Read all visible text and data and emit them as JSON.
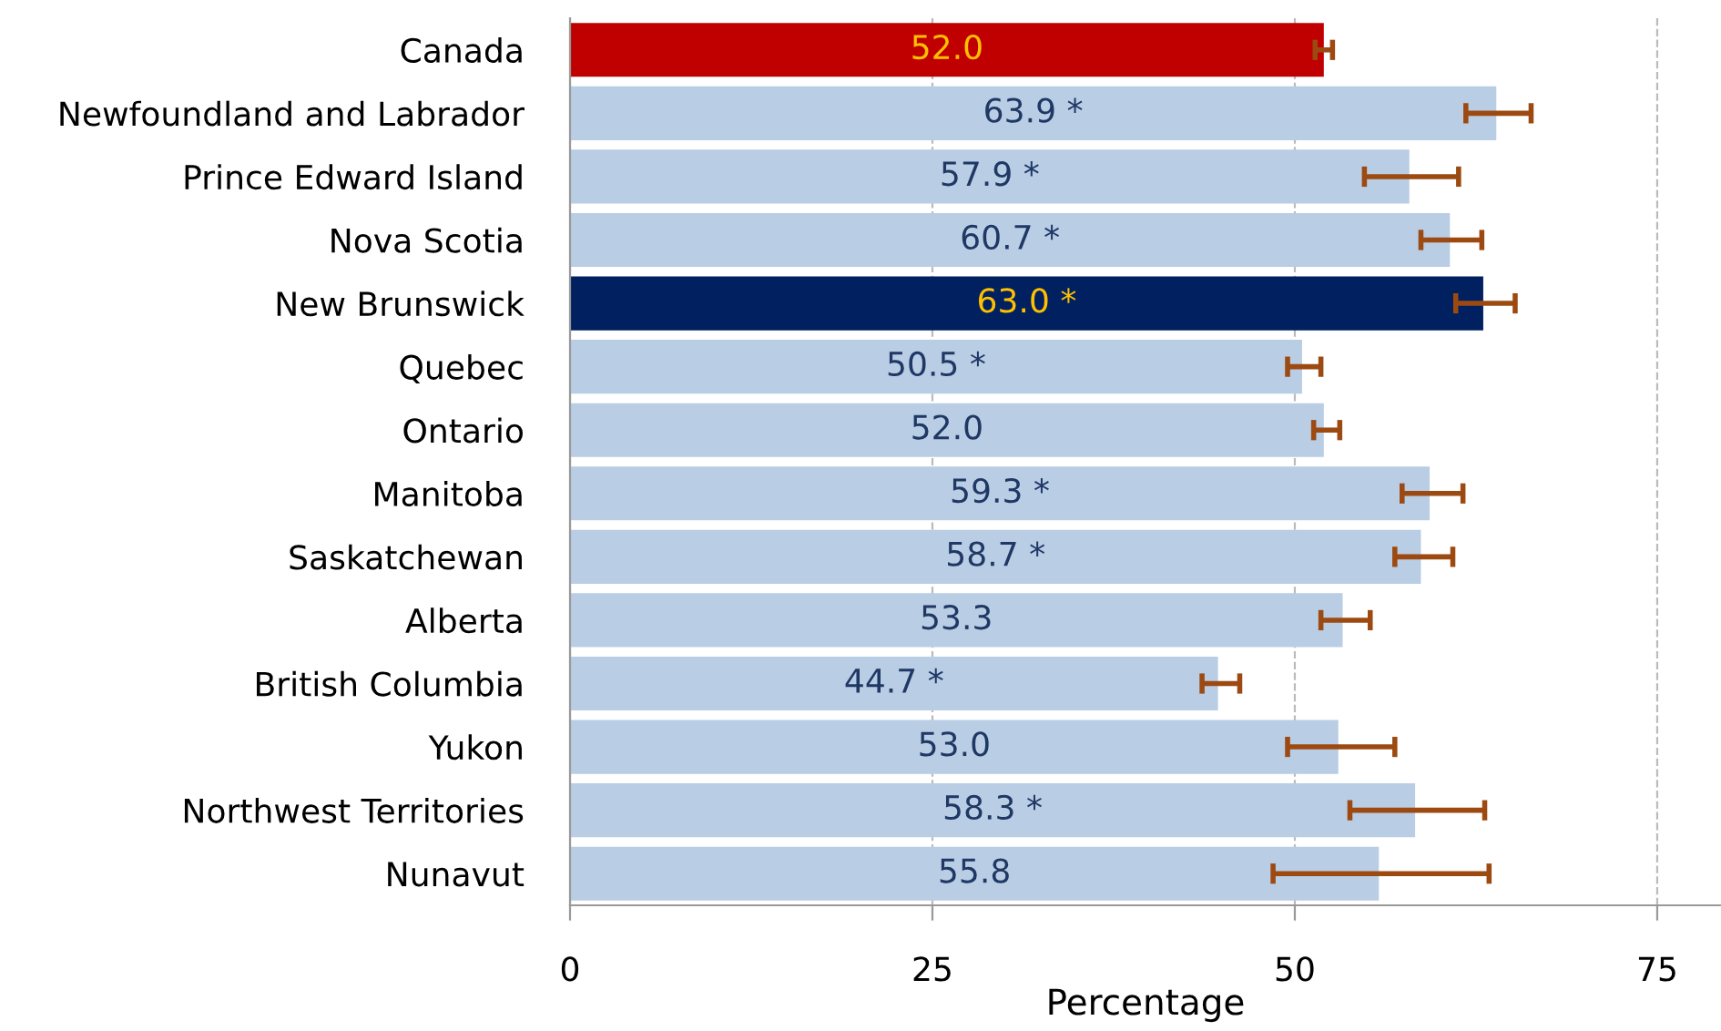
{
  "chart_data": {
    "type": "bar",
    "orientation": "horizontal",
    "xlabel": "Percentage",
    "categories": [
      "Canada",
      "Newfoundland and Labrador",
      "Prince Edward Island",
      "Nova Scotia",
      "New Brunswick",
      "Quebec",
      "Ontario",
      "Manitoba",
      "Saskatchewan",
      "Alberta",
      "British Columbia",
      "Yukon",
      "Northwest Territories",
      "Nunavut"
    ],
    "values": [
      52.0,
      63.9,
      57.9,
      60.7,
      63.0,
      50.5,
      52.0,
      59.3,
      58.7,
      53.3,
      44.7,
      53.0,
      58.3,
      55.8
    ],
    "value_labels": [
      "52.0",
      "63.9 *",
      "57.9 *",
      "60.7 *",
      "63.0 *",
      "50.5 *",
      "52.0",
      "59.3 *",
      "58.7 *",
      "53.3",
      "44.7 *",
      "53.0",
      "58.3 *",
      "55.8"
    ],
    "colors": [
      "#c00000",
      "#b9cde5",
      "#b9cde5",
      "#b9cde5",
      "#002060",
      "#b9cde5",
      "#b9cde5",
      "#b9cde5",
      "#b9cde5",
      "#b9cde5",
      "#b9cde5",
      "#b9cde5",
      "#b9cde5",
      "#b9cde5"
    ],
    "errors": [
      [
        51.4,
        52.6
      ],
      [
        61.8,
        66.3
      ],
      [
        54.8,
        61.3
      ],
      [
        58.7,
        62.9
      ],
      [
        61.1,
        65.2
      ],
      [
        49.5,
        51.8
      ],
      [
        51.3,
        53.1
      ],
      [
        57.4,
        61.6
      ],
      [
        56.9,
        60.9
      ],
      [
        51.8,
        55.2
      ],
      [
        43.6,
        46.2
      ],
      [
        49.5,
        56.9
      ],
      [
        53.8,
        63.1
      ],
      [
        48.5,
        63.4
      ]
    ],
    "xlim": [
      0,
      79.4
    ],
    "xticks": [
      0,
      25,
      50,
      75
    ],
    "grid": "x"
  }
}
